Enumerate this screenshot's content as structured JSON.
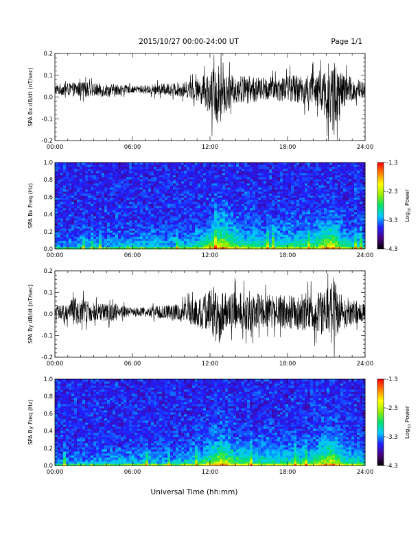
{
  "header": {
    "title": "2015/10/27  00:00-24:00 UT",
    "page": "Page 1/1"
  },
  "x_axis_title": "Universal Time (hh:mm)",
  "chart_data": [
    {
      "type": "line",
      "name": "bx-dbdt",
      "ylabel": "SPA Bx dB/dt (nT/sec)",
      "xlabel": "",
      "xlim": [
        0,
        24
      ],
      "xtick_labels": [
        "00:00",
        "06:00",
        "12:00",
        "18:00",
        "24:00"
      ],
      "ylim": [
        -0.2,
        0.2
      ],
      "ytick_labels": [
        "-0.2",
        "-0.1",
        "0.0",
        "0.1",
        "0.2"
      ],
      "color": "#000000",
      "envelope": {
        "hours": [
          0,
          2,
          4,
          4.7,
          5,
          6,
          8,
          10,
          11,
          11.5,
          12,
          12.7,
          13,
          14,
          15,
          16,
          18,
          20,
          21,
          21.5,
          22,
          22.5,
          24
        ],
        "upper": [
          0.06,
          0.07,
          0.06,
          0.06,
          0.06,
          0.05,
          0.06,
          0.07,
          0.08,
          0.1,
          0.12,
          0.16,
          0.11,
          0.1,
          0.1,
          0.09,
          0.1,
          0.11,
          0.14,
          0.2,
          0.13,
          0.1,
          0.08
        ],
        "lower": [
          0.01,
          0.0,
          0.0,
          0.0,
          0.01,
          0.02,
          0.01,
          0.0,
          -0.02,
          -0.04,
          -0.08,
          -0.15,
          -0.08,
          -0.03,
          -0.03,
          -0.02,
          -0.02,
          -0.04,
          -0.1,
          -0.2,
          -0.12,
          -0.05,
          0.0
        ]
      }
    },
    {
      "type": "heatmap",
      "name": "bx-spectrogram",
      "ylabel": "SPA Bx Freq (Hz)",
      "xlim": [
        0,
        24
      ],
      "xtick_labels": [
        "00:00",
        "06:00",
        "12:00",
        "18:00",
        "24:00"
      ],
      "ylim": [
        0.0,
        1.0
      ],
      "ytick_labels": [
        "0.0",
        "0.2",
        "0.4",
        "0.6",
        "0.8",
        "1.0"
      ],
      "colorbar": {
        "label": "Log",
        "label_sub": "10",
        "label_rest": " Power",
        "range": [
          -4.3,
          -1.3
        ],
        "tick_labels": [
          "-1.3",
          "-2.3",
          "-3.3",
          "-4.3"
        ],
        "colors": [
          "#000000",
          "#4b0082",
          "#2020ff",
          "#00c8ff",
          "#00e070",
          "#9aee00",
          "#ffff00",
          "#ff8000",
          "#ff0000"
        ]
      }
    },
    {
      "type": "line",
      "name": "by-dbdt",
      "ylabel": "SPA By dB/dt (nT/sec)",
      "xlabel": "",
      "xlim": [
        0,
        24
      ],
      "xtick_labels": [
        "00:00",
        "06:00",
        "12:00",
        "18:00",
        "24:00"
      ],
      "ylim": [
        -0.2,
        0.2
      ],
      "ytick_labels": [
        "-0.2",
        "-0.1",
        "0.0",
        "0.1",
        "0.2"
      ],
      "color": "#000000",
      "envelope": {
        "hours": [
          0,
          1,
          1.5,
          3,
          4.7,
          5,
          6,
          8,
          10,
          11,
          12,
          12.7,
          13,
          14,
          15,
          16,
          18,
          20,
          21,
          21.5,
          22,
          23,
          24
        ],
        "upper": [
          0.04,
          0.05,
          0.08,
          0.05,
          0.05,
          0.04,
          0.03,
          0.04,
          0.05,
          0.08,
          0.11,
          0.15,
          0.1,
          0.1,
          0.11,
          0.09,
          0.09,
          0.1,
          0.13,
          0.19,
          0.1,
          0.07,
          0.05
        ],
        "lower": [
          -0.02,
          -0.03,
          -0.06,
          -0.03,
          -0.04,
          -0.02,
          -0.01,
          -0.02,
          -0.04,
          -0.06,
          -0.09,
          -0.15,
          -0.08,
          -0.07,
          -0.08,
          -0.06,
          -0.07,
          -0.08,
          -0.11,
          -0.16,
          -0.08,
          -0.05,
          -0.03
        ]
      }
    },
    {
      "type": "heatmap",
      "name": "by-spectrogram",
      "ylabel": "SPA By Freq (Hz)",
      "xlim": [
        0,
        24
      ],
      "xtick_labels": [
        "00:00",
        "06:00",
        "12:00",
        "18:00",
        "24:00"
      ],
      "ylim": [
        0.0,
        1.0
      ],
      "ytick_labels": [
        "0.0",
        "0.2",
        "0.4",
        "0.6",
        "0.8",
        "1.0"
      ],
      "colorbar": {
        "label": "Log",
        "label_sub": "10",
        "label_rest": " Power",
        "range": [
          -4.3,
          -1.3
        ],
        "tick_labels": [
          "-1.3",
          "-2.3",
          "-3.3",
          "-4.3"
        ],
        "colors": [
          "#000000",
          "#4b0082",
          "#2020ff",
          "#00c8ff",
          "#00e070",
          "#9aee00",
          "#ffff00",
          "#ff8000",
          "#ff0000"
        ]
      }
    }
  ]
}
